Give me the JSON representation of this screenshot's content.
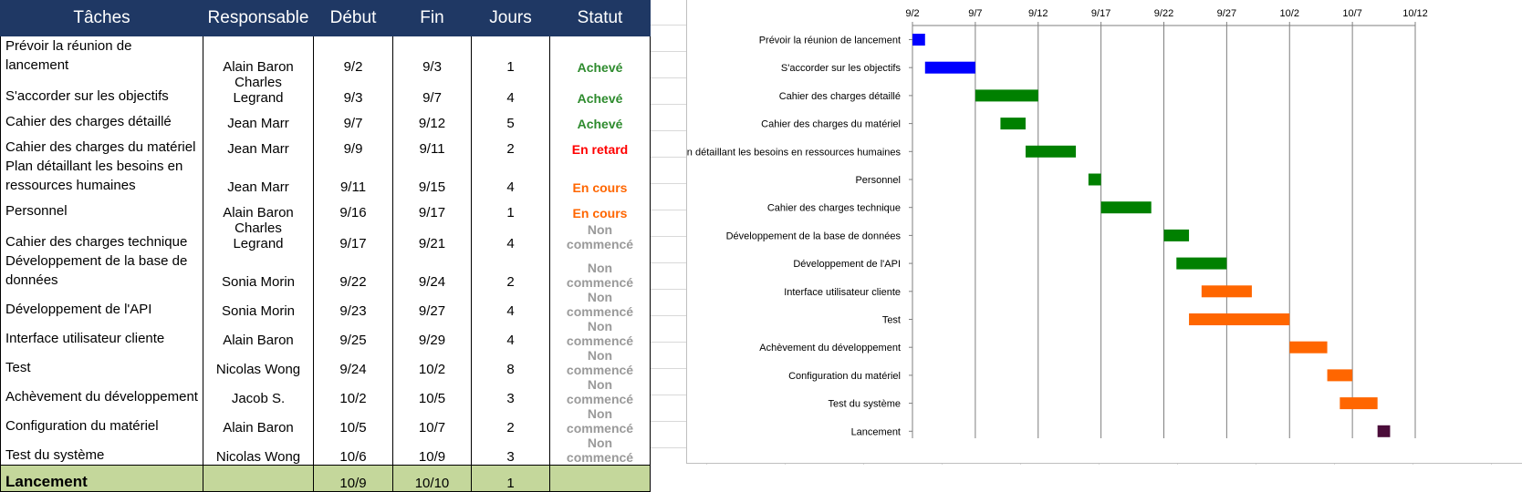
{
  "table": {
    "headers": [
      "Tâches",
      "Responsable",
      "Début",
      "Fin",
      "Jours",
      "Statut"
    ],
    "rows": [
      {
        "task": "Prévoir la réunion de lancement",
        "owner": "Alain Baron",
        "start": "9/2",
        "end": "9/3",
        "days": "1",
        "status": "Achevé",
        "status_color": "#2e8b2e"
      },
      {
        "task": "S'accorder sur les objectifs",
        "owner": "Charles Legrand",
        "start": "9/3",
        "end": "9/7",
        "days": "4",
        "status": "Achevé",
        "status_color": "#2e8b2e"
      },
      {
        "task": "Cahier des charges détaillé",
        "owner": "Jean Marr",
        "start": "9/7",
        "end": "9/12",
        "days": "5",
        "status": "Achevé",
        "status_color": "#2e8b2e"
      },
      {
        "task": "Cahier des charges du matériel",
        "owner": "Jean Marr",
        "start": "9/9",
        "end": "9/11",
        "days": "2",
        "status": "En retard",
        "status_color": "#ff0000"
      },
      {
        "task": "Plan détaillant les besoins en ressources humaines",
        "owner": "Jean Marr",
        "start": "9/11",
        "end": "9/15",
        "days": "4",
        "status": "En cours",
        "status_color": "#ff6600"
      },
      {
        "task": "Personnel",
        "owner": "Alain Baron",
        "start": "9/16",
        "end": "9/17",
        "days": "1",
        "status": "En cours",
        "status_color": "#ff6600"
      },
      {
        "task": "Cahier des charges technique",
        "owner": "Charles Legrand",
        "start": "9/17",
        "end": "9/21",
        "days": "4",
        "status": "Non commencé",
        "status_color": "#9a9a9a"
      },
      {
        "task": "Développement de la base de données",
        "owner": "Sonia Morin",
        "start": "9/22",
        "end": "9/24",
        "days": "2",
        "status": "Non commencé",
        "status_color": "#9a9a9a"
      },
      {
        "task": "Développement de l'API",
        "owner": "Sonia Morin",
        "start": "9/23",
        "end": "9/27",
        "days": "4",
        "status": "Non commencé",
        "status_color": "#9a9a9a"
      },
      {
        "task": "Interface utilisateur cliente",
        "owner": "Alain Baron",
        "start": "9/25",
        "end": "9/29",
        "days": "4",
        "status": "Non commencé",
        "status_color": "#9a9a9a"
      },
      {
        "task": "Test",
        "owner": "Nicolas Wong",
        "start": "9/24",
        "end": "10/2",
        "days": "8",
        "status": "Non commencé",
        "status_color": "#9a9a9a"
      },
      {
        "task": "Achèvement du développement",
        "owner": "Jacob S.",
        "start": "10/2",
        "end": "10/5",
        "days": "3",
        "status": "Non commencé",
        "status_color": "#9a9a9a"
      },
      {
        "task": "Configuration du matériel",
        "owner": "Alain Baron",
        "start": "10/5",
        "end": "10/7",
        "days": "2",
        "status": "Non commencé",
        "status_color": "#9a9a9a"
      },
      {
        "task": "Test du système",
        "owner": "Nicolas Wong",
        "start": "10/6",
        "end": "10/9",
        "days": "3",
        "status": "Non commencé",
        "status_color": "#9a9a9a"
      }
    ],
    "launch": {
      "task": "Lancement",
      "owner": "",
      "start": "10/9",
      "end": "10/10",
      "days": "1",
      "status": ""
    }
  },
  "chart_data": {
    "type": "bar",
    "orientation": "horizontal",
    "x_ticks": [
      "9/2",
      "9/7",
      "9/12",
      "9/17",
      "9/22",
      "9/27",
      "10/2",
      "10/7",
      "10/12"
    ],
    "xlim": [
      "9/2",
      "10/12"
    ],
    "grid": "vertical",
    "tasks": [
      {
        "name": "Prévoir la réunion de lancement",
        "start": "9/2",
        "end": "9/3",
        "color": "#0000ff"
      },
      {
        "name": "S'accorder sur les objectifs",
        "start": "9/3",
        "end": "9/7",
        "color": "#0000ff"
      },
      {
        "name": "Cahier des charges détaillé",
        "start": "9/7",
        "end": "9/12",
        "color": "#008000"
      },
      {
        "name": "Cahier des charges du matériel",
        "start": "9/9",
        "end": "9/11",
        "color": "#008000"
      },
      {
        "name": "Plan détaillant les besoins en ressources humaines",
        "start": "9/11",
        "end": "9/15",
        "color": "#008000"
      },
      {
        "name": "Personnel",
        "start": "9/16",
        "end": "9/17",
        "color": "#008000"
      },
      {
        "name": "Cahier des charges technique",
        "start": "9/17",
        "end": "9/21",
        "color": "#008000"
      },
      {
        "name": "Développement de la base de données",
        "start": "9/22",
        "end": "9/24",
        "color": "#008000"
      },
      {
        "name": "Développement de l'API",
        "start": "9/23",
        "end": "9/27",
        "color": "#008000"
      },
      {
        "name": "Interface utilisateur cliente",
        "start": "9/25",
        "end": "9/29",
        "color": "#ff6600"
      },
      {
        "name": "Test",
        "start": "9/24",
        "end": "10/2",
        "color": "#ff6600"
      },
      {
        "name": "Achèvement du développement",
        "start": "10/2",
        "end": "10/5",
        "color": "#ff6600"
      },
      {
        "name": "Configuration du matériel",
        "start": "10/5",
        "end": "10/7",
        "color": "#ff6600"
      },
      {
        "name": "Test du système",
        "start": "10/6",
        "end": "10/9",
        "color": "#ff6600"
      },
      {
        "name": "Lancement",
        "start": "10/9",
        "end": "10/10",
        "color": "#4b0d3a"
      }
    ]
  }
}
